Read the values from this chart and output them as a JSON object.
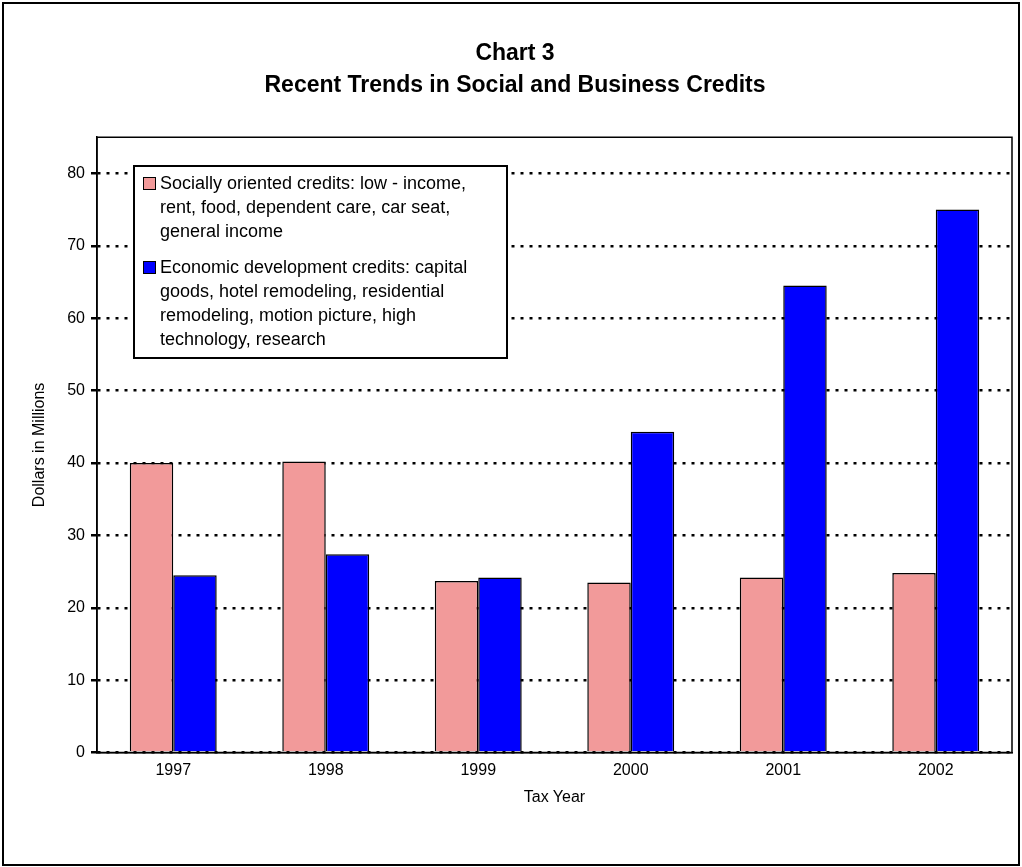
{
  "chart_data": {
    "type": "bar",
    "title": "Chart 3",
    "subtitle": "Recent Trends in Social and Business Credits",
    "xlabel": "Tax Year",
    "ylabel": "Dollars in Millions",
    "categories": [
      "1997",
      "1998",
      "1999",
      "2000",
      "2001",
      "2002"
    ],
    "series": [
      {
        "name": "Socially oriented credits: low - income, rent, food, dependent care, car seat, general income",
        "color": "#f29a9a",
        "values": [
          40.0,
          40.2,
          23.7,
          23.5,
          24.2,
          24.8
        ]
      },
      {
        "name": "Economic development credits: capital goods, hotel remodeling, residential remodeling, motion picture, high technology, research",
        "color": "#0000ff",
        "values": [
          24.5,
          27.4,
          24.2,
          44.3,
          64.5,
          75.0
        ]
      }
    ],
    "ylim": [
      0,
      85
    ],
    "yticks": [
      0,
      10,
      20,
      30,
      40,
      50,
      60,
      70,
      80
    ],
    "grid": "y",
    "legend": "top left"
  }
}
